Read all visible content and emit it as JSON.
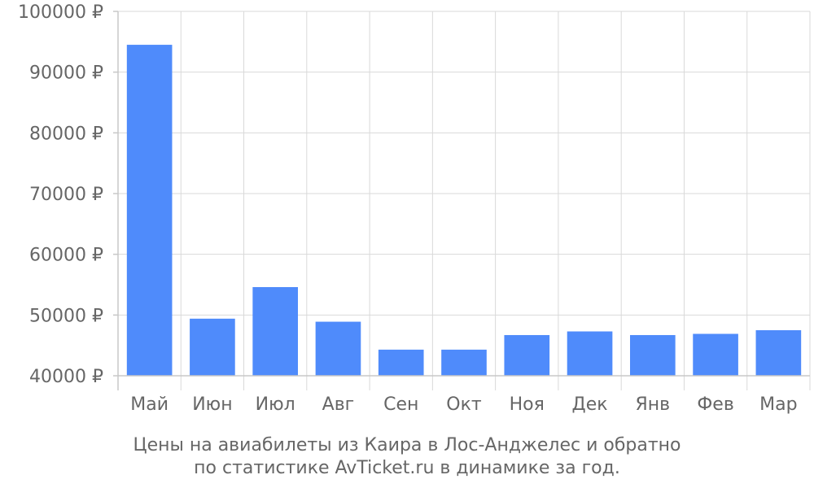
{
  "chart_data": {
    "type": "bar",
    "categories": [
      "Май",
      "Июн",
      "Июл",
      "Авг",
      "Сен",
      "Окт",
      "Ноя",
      "Дек",
      "Янв",
      "Фев",
      "Мар"
    ],
    "values": [
      94500,
      49400,
      54600,
      48900,
      44300,
      44300,
      46700,
      47300,
      46700,
      46900,
      47500
    ],
    "ylim": [
      40000,
      100000
    ],
    "y_ticks": [
      "100000 ₽",
      "90000 ₽",
      "80000 ₽",
      "70000 ₽",
      "60000 ₽",
      "50000 ₽",
      "40000 ₽"
    ],
    "y_tick_values": [
      100000,
      90000,
      80000,
      70000,
      60000,
      50000,
      40000
    ],
    "grid": true,
    "bar_color": "#4f8bfb",
    "caption": [
      "Цены на авиабилеты из Каира в Лос-Анджелес и обратно",
      "по статистике AvTicket.ru в динамике за год."
    ]
  }
}
